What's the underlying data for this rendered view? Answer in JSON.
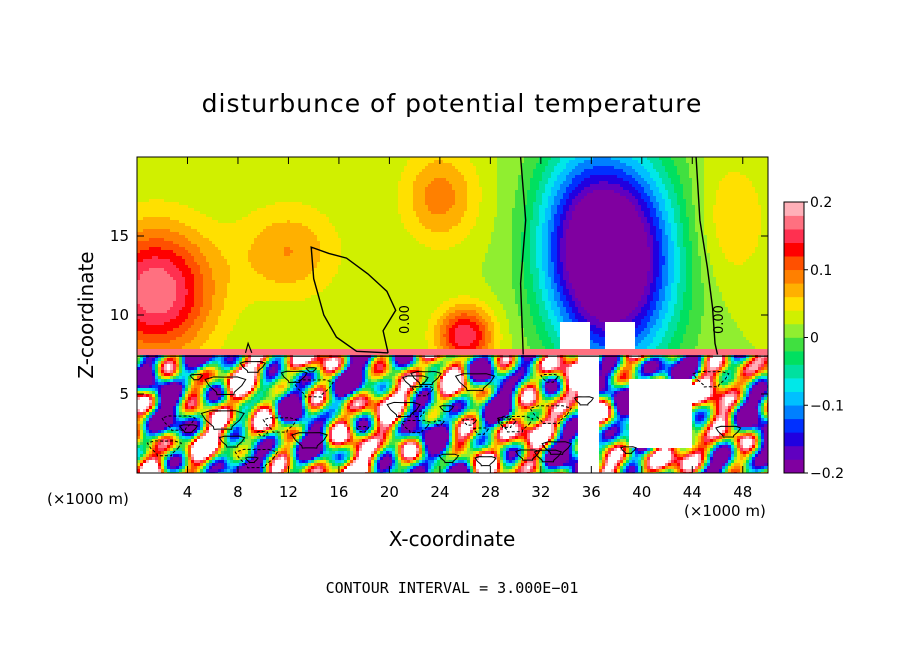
{
  "chart_data": {
    "type": "heatmap",
    "title": "disturbunce of potential temperature",
    "xlabel": "X-coordinate",
    "ylabel": "Z-coordinate",
    "xlim": [
      0,
      50
    ],
    "ylim": [
      0,
      20
    ],
    "x_ticks": [
      4,
      8,
      12,
      16,
      20,
      24,
      28,
      32,
      36,
      40,
      44,
      48
    ],
    "y_ticks": [
      5,
      10,
      15
    ],
    "x_unit_left": "(×1000 m)",
    "x_unit_right": "(×1000 m)",
    "colorbar": {
      "min": -0.2,
      "max": 0.2,
      "tick_values": [
        0.2,
        0.1,
        0,
        -0.1,
        -0.2
      ],
      "tick_labels": [
        "0.2",
        "0.1",
        "0",
        "−0.1",
        "−0.2"
      ],
      "colors": [
        "#8000a0",
        "#6000c0",
        "#2000e0",
        "#0030ff",
        "#0080ff",
        "#00c0ff",
        "#00e8e8",
        "#00e0a0",
        "#00e060",
        "#40e040",
        "#90ee30",
        "#d0f000",
        "#ffe000",
        "#ffb000",
        "#ff8000",
        "#ff5000",
        "#ff0000",
        "#ff3050",
        "#ff7080",
        "#ffb0b8"
      ]
    },
    "contour_labels": [
      {
        "text": "0.00",
        "x": 20.8,
        "z": 9.6
      },
      {
        "text": "0.00",
        "x": 46.2,
        "z": 9.6
      }
    ],
    "contour_interval": "CONTOUR INTERVAL = 3.000E−01",
    "fields": {
      "inversion_height": 7.4,
      "warm_blobs": [
        {
          "x": 1.5,
          "z": 11.5,
          "sx": 4.5,
          "sz": 4,
          "amp": 0.16
        },
        {
          "x": 12,
          "z": 14,
          "sx": 4,
          "sz": 3,
          "amp": 0.06
        },
        {
          "x": 26,
          "z": 8.7,
          "sx": 2.2,
          "sz": 1.8,
          "amp": 0.14
        },
        {
          "x": 24,
          "z": 17.5,
          "sx": 3,
          "sz": 3,
          "amp": 0.07
        },
        {
          "x": 47,
          "z": 16,
          "sx": 3,
          "sz": 4,
          "amp": 0.04
        }
      ],
      "cold_plumes": [
        {
          "x": 38,
          "z": 13.5,
          "sx": 4.6,
          "sz": 6.5,
          "amp": -0.27
        },
        {
          "x": 34.5,
          "z": 15,
          "sx": 3.5,
          "sz": 6,
          "amp": -0.08
        }
      ]
    }
  }
}
